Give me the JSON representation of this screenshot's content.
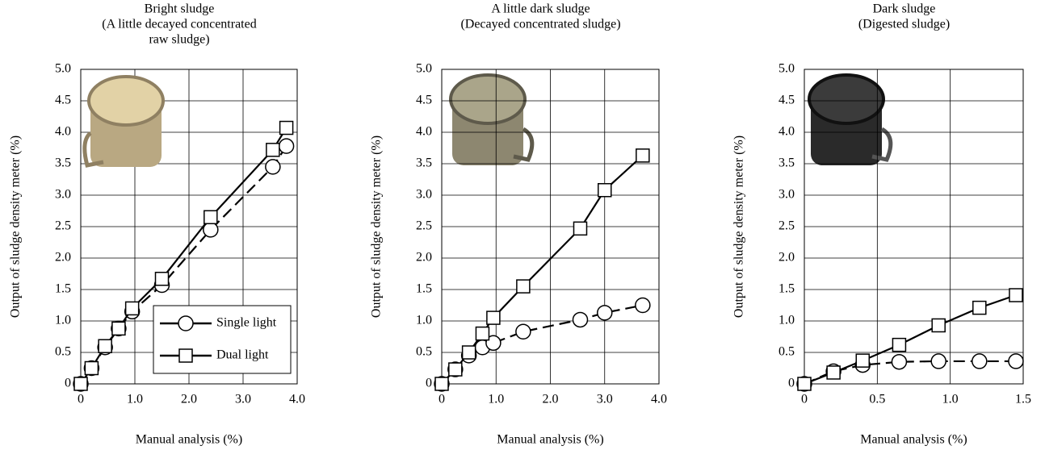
{
  "chart_data": [
    {
      "type": "line",
      "title": [
        "Bright sludge",
        "(A little decayed concentrated",
        "raw sludge)"
      ],
      "x_label": "Manual analysis (%)",
      "y_label": "Output of sludge density meter (%)",
      "x": [
        0,
        0.2,
        0.45,
        0.7,
        0.95,
        1.5,
        2.4,
        3.55,
        3.8
      ],
      "series": [
        {
          "name": "Single light",
          "color": "#000000",
          "marker": "circle",
          "dashed": true,
          "values": [
            0,
            0.25,
            0.58,
            0.88,
            1.15,
            1.57,
            2.45,
            3.45,
            3.78
          ]
        },
        {
          "name": "Dual light",
          "color": "#000000",
          "marker": "square",
          "dashed": false,
          "values": [
            0,
            0.25,
            0.6,
            0.88,
            1.2,
            1.67,
            2.65,
            3.72,
            4.07
          ]
        }
      ],
      "xlim": [
        0,
        4
      ],
      "xticks": [
        0,
        {
          "value": 1,
          "label": "1.0"
        },
        {
          "value": 2,
          "label": "2.0"
        },
        {
          "value": 3,
          "label": "3.0"
        },
        {
          "value": 4,
          "label": "4.0"
        }
      ],
      "ylim": [
        0,
        5
      ],
      "yticks": [
        0,
        0.5,
        {
          "value": 1,
          "label": "1.0"
        },
        1.5,
        {
          "value": 2,
          "label": "2.0"
        },
        2.5,
        {
          "value": 3,
          "label": "3.0"
        },
        3.5,
        {
          "value": 4,
          "label": "4.0"
        },
        4.5,
        {
          "value": 5,
          "label": "5.0"
        }
      ],
      "grid": true,
      "legend": "lower right"
    },
    {
      "type": "line",
      "title": [
        "A little dark sludge",
        "(Decayed concentrated sludge)"
      ],
      "x_label": "Manual analysis (%)",
      "y_label": "Output of sludge density meter (%)",
      "x": [
        0,
        0.25,
        0.5,
        0.75,
        0.95,
        1.5,
        2.55,
        3.0,
        3.7
      ],
      "series": [
        {
          "color": "#000000",
          "marker": "circle",
          "dashed": true,
          "values": [
            0,
            0.23,
            0.45,
            0.58,
            0.65,
            0.83,
            1.02,
            1.13,
            1.25
          ]
        },
        {
          "color": "#000000",
          "marker": "square",
          "dashed": false,
          "values": [
            0,
            0.23,
            0.5,
            0.8,
            1.05,
            1.55,
            2.47,
            3.08,
            3.63
          ]
        }
      ],
      "xlim": [
        0,
        4
      ],
      "xticks": [
        0,
        {
          "value": 1,
          "label": "1.0"
        },
        {
          "value": 2,
          "label": "2.0"
        },
        {
          "value": 3,
          "label": "3.0"
        },
        {
          "value": 4,
          "label": "4.0"
        }
      ],
      "ylim": [
        0,
        5
      ],
      "yticks": [
        0,
        0.5,
        {
          "value": 1,
          "label": "1.0"
        },
        1.5,
        {
          "value": 2,
          "label": "2.0"
        },
        2.5,
        {
          "value": 3,
          "label": "3.0"
        },
        3.5,
        {
          "value": 4,
          "label": "4.0"
        },
        4.5,
        {
          "value": 5,
          "label": "5.0"
        }
      ],
      "grid": true
    },
    {
      "type": "line",
      "title": [
        "Dark sludge",
        "(Digested sludge)"
      ],
      "x_label": "Manual analysis (%)",
      "y_label": "Output of sludge density meter (%)",
      "x": [
        0,
        0.2,
        0.4,
        0.65,
        0.92,
        1.2,
        1.45
      ],
      "series": [
        {
          "color": "#000000",
          "marker": "circle",
          "dashed": true,
          "values": [
            0,
            0.2,
            0.3,
            0.35,
            0.36,
            0.36,
            0.36
          ]
        },
        {
          "color": "#000000",
          "marker": "square",
          "dashed": false,
          "values": [
            0,
            0.18,
            0.37,
            0.62,
            0.93,
            1.21,
            1.41
          ]
        }
      ],
      "xlim": [
        0,
        1.5
      ],
      "xticks": [
        0,
        0.5,
        {
          "value": 1,
          "label": "1.0"
        },
        1.5
      ],
      "ylim": [
        0,
        5
      ],
      "yticks": [
        0,
        0.5,
        {
          "value": 1,
          "label": "1.0"
        },
        1.5,
        {
          "value": 2,
          "label": "2.0"
        },
        2.5,
        {
          "value": 3,
          "label": "3.0"
        },
        3.5,
        {
          "value": 4,
          "label": "4.0"
        },
        4.5,
        {
          "value": 5,
          "label": "5.0"
        }
      ],
      "grid": true
    }
  ]
}
